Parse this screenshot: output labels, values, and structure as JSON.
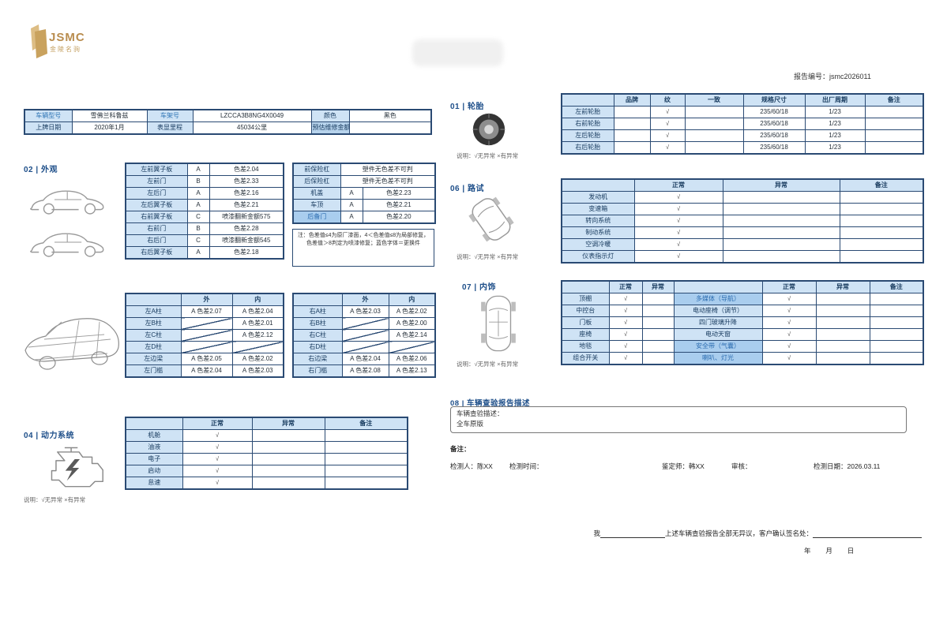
{
  "logo": {
    "brand": "JSMC",
    "subtitle": "金陵名驹"
  },
  "report_no": "报告编号：jsmc2026011",
  "caption_note": "说明：√无异常  ×有异常",
  "sections": {
    "s01": "01 | 轮胎",
    "s02": "02 | 外观",
    "s04": "04 | 动力系统",
    "s06": "06 | 路试",
    "s07": "07 | 内饰",
    "s08": "08 | 车辆查验报告描述"
  },
  "info": {
    "rows": [
      [
        {
          "t": "车辆型号",
          "c": "lb b"
        },
        {
          "t": "雪佛兰科鲁兹"
        },
        {
          "t": "车架号",
          "c": "lb b"
        },
        {
          "t": "LZCCA3B8NG4X0049"
        },
        {
          "t": "颜色",
          "c": "lb"
        },
        {
          "t": "黑色"
        }
      ],
      [
        {
          "t": "上牌日期",
          "c": "lb"
        },
        {
          "t": "2020年1月"
        },
        {
          "t": "表显里程",
          "c": "lb"
        },
        {
          "t": "45034公里"
        },
        {
          "t": "预估维修金额",
          "c": "lb d"
        },
        {
          "t": ""
        }
      ]
    ]
  },
  "exterior": {
    "left_rows": [
      [
        {
          "t": "左前翼子板",
          "c": "lb"
        },
        {
          "t": "A"
        },
        {
          "t": "色差2.04"
        }
      ],
      [
        {
          "t": "左前门",
          "c": "lb"
        },
        {
          "t": "B"
        },
        {
          "t": "色差2.33"
        }
      ],
      [
        {
          "t": "左后门",
          "c": "lb"
        },
        {
          "t": "A"
        },
        {
          "t": "色差2.16"
        }
      ],
      [
        {
          "t": "左后翼子板",
          "c": "lb"
        },
        {
          "t": "A"
        },
        {
          "t": "色差2.21"
        }
      ],
      [
        {
          "t": "右前翼子板",
          "c": "lb"
        },
        {
          "t": "C"
        },
        {
          "t": "喷漆翻新金额575"
        }
      ],
      [
        {
          "t": "右前门",
          "c": "lb"
        },
        {
          "t": "B"
        },
        {
          "t": "色差2.28"
        }
      ],
      [
        {
          "t": "右后门",
          "c": "lb"
        },
        {
          "t": "C"
        },
        {
          "t": "喷漆翻新金额545"
        }
      ],
      [
        {
          "t": "右后翼子板",
          "c": "lb"
        },
        {
          "t": "A"
        },
        {
          "t": "色差2.18"
        }
      ]
    ],
    "right_rows": [
      [
        {
          "t": "前保险杠",
          "c": "lb"
        },
        {
          "t": "塑件无色差不可判",
          "s": 2
        }
      ],
      [
        {
          "t": "后保险杠",
          "c": "lb"
        },
        {
          "t": "塑件无色差不可判",
          "s": 2
        }
      ],
      [
        {
          "t": "机盖",
          "c": "lb"
        },
        {
          "t": "A"
        },
        {
          "t": "色差2.23"
        }
      ],
      [
        {
          "t": "车顶",
          "c": "lb"
        },
        {
          "t": "A"
        },
        {
          "t": "色差2.21"
        }
      ],
      [
        {
          "t": "后备门",
          "c": "hl"
        },
        {
          "t": "A"
        },
        {
          "t": "色差2.20"
        }
      ]
    ],
    "note": "注：色差值≤4为原厂漆面，4＜色差值≤8为局部修复，色差值＞8判定为喷漆修复；蓝色字体＝更换件"
  },
  "frame": {
    "left_rows": [
      [
        {
          "t": "",
          "c": "lb"
        },
        {
          "t": "外",
          "c": "hd"
        },
        {
          "t": "内",
          "c": "hd"
        }
      ],
      [
        {
          "t": "左A柱",
          "c": "lb"
        },
        {
          "t": "A 色差2.07"
        },
        {
          "t": "A 色差2.04"
        }
      ],
      [
        {
          "t": "左B柱",
          "c": "lb"
        },
        {
          "t": "",
          "c": "dg"
        },
        {
          "t": "A 色差2.01"
        }
      ],
      [
        {
          "t": "左C柱",
          "c": "lb"
        },
        {
          "t": "",
          "c": "dg"
        },
        {
          "t": "A 色差2.12"
        }
      ],
      [
        {
          "t": "左D柱",
          "c": "lb"
        },
        {
          "t": "",
          "c": "dg"
        },
        {
          "t": "",
          "c": "dg"
        }
      ],
      [
        {
          "t": "左边梁",
          "c": "lb"
        },
        {
          "t": "A 色差2.05"
        },
        {
          "t": "A 色差2.02"
        }
      ],
      [
        {
          "t": "左门槛",
          "c": "lb"
        },
        {
          "t": "A 色差2.04"
        },
        {
          "t": "A 色差2.03"
        }
      ]
    ],
    "right_rows": [
      [
        {
          "t": "",
          "c": "lb"
        },
        {
          "t": "外",
          "c": "hd"
        },
        {
          "t": "内",
          "c": "hd"
        }
      ],
      [
        {
          "t": "右A柱",
          "c": "lb"
        },
        {
          "t": "A 色差2.03"
        },
        {
          "t": "A 色差2.02"
        }
      ],
      [
        {
          "t": "右B柱",
          "c": "lb"
        },
        {
          "t": "",
          "c": "dg"
        },
        {
          "t": "A 色差2.00"
        }
      ],
      [
        {
          "t": "右C柱",
          "c": "lb"
        },
        {
          "t": "",
          "c": "dg"
        },
        {
          "t": "A 色差2.14"
        }
      ],
      [
        {
          "t": "右D柱",
          "c": "lb"
        },
        {
          "t": "",
          "c": "dg"
        },
        {
          "t": "",
          "c": "dg"
        }
      ],
      [
        {
          "t": "右边梁",
          "c": "lb"
        },
        {
          "t": "A 色差2.04"
        },
        {
          "t": "A 色差2.06"
        }
      ],
      [
        {
          "t": "右门槛",
          "c": "lb"
        },
        {
          "t": "A 色差2.08"
        },
        {
          "t": "A 色差2.13"
        }
      ]
    ]
  },
  "power": {
    "rows": [
      [
        {
          "t": "",
          "c": "hd"
        },
        {
          "t": "正常",
          "c": "hd"
        },
        {
          "t": "异常",
          "c": "hd"
        },
        {
          "t": "备注",
          "c": "hd"
        }
      ],
      [
        {
          "t": "机舱",
          "c": "lb"
        },
        {
          "t": "√",
          "c": "tk"
        },
        {
          "t": ""
        },
        {
          "t": ""
        }
      ],
      [
        {
          "t": "油液",
          "c": "lb"
        },
        {
          "t": "√",
          "c": "tk"
        },
        {
          "t": ""
        },
        {
          "t": ""
        }
      ],
      [
        {
          "t": "电子",
          "c": "lb"
        },
        {
          "t": "√",
          "c": "tk"
        },
        {
          "t": ""
        },
        {
          "t": ""
        }
      ],
      [
        {
          "t": "启动",
          "c": "lb"
        },
        {
          "t": "√",
          "c": "tk"
        },
        {
          "t": ""
        },
        {
          "t": ""
        }
      ],
      [
        {
          "t": "怠速",
          "c": "lb"
        },
        {
          "t": "√",
          "c": "tk"
        },
        {
          "t": ""
        },
        {
          "t": ""
        }
      ]
    ]
  },
  "tires": {
    "rows": [
      [
        {
          "t": "",
          "c": "hd"
        },
        {
          "t": "品牌",
          "c": "hd"
        },
        {
          "t": "纹",
          "c": "hd"
        },
        {
          "t": "一致",
          "c": "hd"
        },
        {
          "t": "规格尺寸",
          "c": "hd"
        },
        {
          "t": "出厂周期",
          "c": "hd"
        },
        {
          "t": "备注",
          "c": "hd"
        }
      ],
      [
        {
          "t": "左前轮胎",
          "c": "lb"
        },
        {
          "t": ""
        },
        {
          "t": "√",
          "c": "tk"
        },
        {
          "t": ""
        },
        {
          "t": "235/60/18"
        },
        {
          "t": "1/23"
        },
        {
          "t": ""
        }
      ],
      [
        {
          "t": "右前轮胎",
          "c": "lb"
        },
        {
          "t": ""
        },
        {
          "t": "√",
          "c": "tk"
        },
        {
          "t": ""
        },
        {
          "t": "235/60/18"
        },
        {
          "t": "1/23"
        },
        {
          "t": ""
        }
      ],
      [
        {
          "t": "左后轮胎",
          "c": "lb"
        },
        {
          "t": ""
        },
        {
          "t": "√",
          "c": "tk"
        },
        {
          "t": ""
        },
        {
          "t": "235/60/18"
        },
        {
          "t": "1/23"
        },
        {
          "t": ""
        }
      ],
      [
        {
          "t": "右后轮胎",
          "c": "lb"
        },
        {
          "t": ""
        },
        {
          "t": "√",
          "c": "tk"
        },
        {
          "t": ""
        },
        {
          "t": "235/60/18"
        },
        {
          "t": "1/23"
        },
        {
          "t": ""
        }
      ]
    ]
  },
  "road_test": {
    "rows": [
      [
        {
          "t": "",
          "c": "hd"
        },
        {
          "t": "正常",
          "c": "hd"
        },
        {
          "t": "异常",
          "c": "hd"
        },
        {
          "t": "备注",
          "c": "hd"
        }
      ],
      [
        {
          "t": "发动机",
          "c": "lb"
        },
        {
          "t": "√",
          "c": "tk"
        },
        {
          "t": ""
        },
        {
          "t": ""
        }
      ],
      [
        {
          "t": "变速箱",
          "c": "lb"
        },
        {
          "t": "√",
          "c": "tk"
        },
        {
          "t": ""
        },
        {
          "t": ""
        }
      ],
      [
        {
          "t": "转向系统",
          "c": "lb"
        },
        {
          "t": "√",
          "c": "tk"
        },
        {
          "t": ""
        },
        {
          "t": ""
        }
      ],
      [
        {
          "t": "制动系统",
          "c": "lb"
        },
        {
          "t": "√",
          "c": "tk"
        },
        {
          "t": ""
        },
        {
          "t": ""
        }
      ],
      [
        {
          "t": "空调冷暖",
          "c": "lb"
        },
        {
          "t": "√",
          "c": "tk"
        },
        {
          "t": ""
        },
        {
          "t": ""
        }
      ],
      [
        {
          "t": "仪表指示灯",
          "c": "lb"
        },
        {
          "t": "√",
          "c": "tk"
        },
        {
          "t": ""
        },
        {
          "t": ""
        }
      ]
    ]
  },
  "interior": {
    "rows": [
      [
        {
          "t": "",
          "c": "hd"
        },
        {
          "t": "正常",
          "c": "hd"
        },
        {
          "t": "异常",
          "c": "hd"
        },
        {
          "t": "",
          "c": "hd"
        },
        {
          "t": "正常",
          "c": "hd"
        },
        {
          "t": "异常",
          "c": "hd"
        },
        {
          "t": "备注",
          "c": "hd"
        }
      ],
      [
        {
          "t": "顶棚",
          "c": "lb"
        },
        {
          "t": "√",
          "c": "tk"
        },
        {
          "t": ""
        },
        {
          "t": "多媒体（导航）",
          "c": "hl"
        },
        {
          "t": "√",
          "c": "tk"
        },
        {
          "t": ""
        },
        {
          "t": ""
        }
      ],
      [
        {
          "t": "中控台",
          "c": "lb"
        },
        {
          "t": "√",
          "c": "tk"
        },
        {
          "t": ""
        },
        {
          "t": "电动座椅（调节）",
          "c": "lb"
        },
        {
          "t": "√",
          "c": "tk"
        },
        {
          "t": ""
        },
        {
          "t": ""
        }
      ],
      [
        {
          "t": "门板",
          "c": "lb"
        },
        {
          "t": "√",
          "c": "tk"
        },
        {
          "t": ""
        },
        {
          "t": "四门玻璃升降",
          "c": "lb"
        },
        {
          "t": "√",
          "c": "tk"
        },
        {
          "t": ""
        },
        {
          "t": ""
        }
      ],
      [
        {
          "t": "座椅",
          "c": "lb"
        },
        {
          "t": "√",
          "c": "tk"
        },
        {
          "t": ""
        },
        {
          "t": "电动天窗",
          "c": "lb"
        },
        {
          "t": "√",
          "c": "tk"
        },
        {
          "t": ""
        },
        {
          "t": ""
        }
      ],
      [
        {
          "t": "地毯",
          "c": "lb"
        },
        {
          "t": "√",
          "c": "tk"
        },
        {
          "t": ""
        },
        {
          "t": "安全带（气囊）",
          "c": "hl"
        },
        {
          "t": "√",
          "c": "tk"
        },
        {
          "t": ""
        },
        {
          "t": ""
        }
      ],
      [
        {
          "t": "组合开关",
          "c": "lb"
        },
        {
          "t": "√",
          "c": "tk"
        },
        {
          "t": ""
        },
        {
          "t": "喇叭、灯光",
          "c": "hl"
        },
        {
          "t": "√",
          "c": "tk"
        },
        {
          "t": ""
        },
        {
          "t": ""
        }
      ]
    ]
  },
  "description": {
    "line1": "车辆查验描述：",
    "line2": "全车原版"
  },
  "remark_label": "备注：",
  "signature": {
    "inspector": "检测人：陈XX",
    "time": "检测时间：",
    "appraiser": "鉴定师：韩XX",
    "audit": "审核：",
    "date": "检测日期：2026.03.11"
  },
  "confirm": {
    "prefix": "我",
    "statement": "上述车辆查验报告全部无异议，客户确认签名处：",
    "date_line": "年        月        日"
  }
}
